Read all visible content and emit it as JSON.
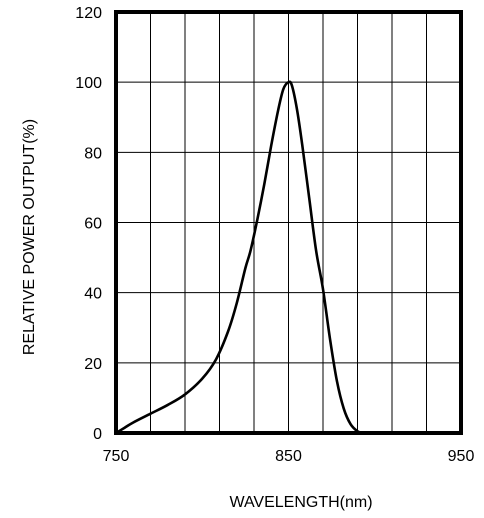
{
  "chart_data": {
    "type": "line",
    "title": "",
    "xlabel": "WAVELENGTH(nm)",
    "ylabel": "RELATIVE POWER OUTPUT(%)",
    "xlim": [
      750,
      950
    ],
    "ylim": [
      0,
      120
    ],
    "x_ticks": [
      750,
      850,
      950
    ],
    "y_ticks": [
      0,
      20,
      40,
      60,
      80,
      100,
      120
    ],
    "x_tick_labels": [
      "750",
      "850",
      "950"
    ],
    "y_tick_labels": [
      "0",
      "20",
      "40",
      "60",
      "80",
      "100",
      "120"
    ],
    "grid": true,
    "x_grid_step": 20,
    "y_grid_step": 20,
    "legend": "none",
    "series": [
      {
        "color": "#000000",
        "x": [
          750,
          755,
          760,
          770,
          780,
          790,
          800,
          808,
          815,
          820,
          825,
          828,
          832,
          836,
          840,
          844,
          847,
          850,
          852,
          855,
          858,
          862,
          866,
          870,
          874,
          878,
          882,
          886,
          890,
          893
        ],
        "y": [
          0,
          1.5,
          3,
          5.5,
          8,
          11,
          15.5,
          21,
          29,
          37,
          47,
          52,
          61,
          71,
          82,
          92,
          98,
          100,
          99,
          92,
          82,
          67,
          52,
          41,
          27,
          15,
          7,
          2.5,
          0.5,
          0
        ]
      }
    ]
  }
}
